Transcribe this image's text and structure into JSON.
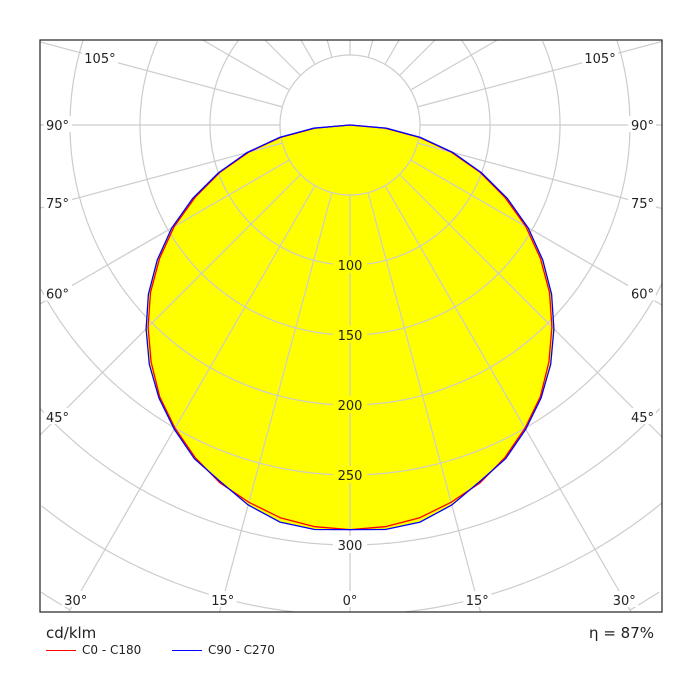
{
  "chart_data": {
    "type": "polar",
    "unit_label": "cd/klm",
    "efficiency_label": "η = 87%",
    "radial_ticks": [
      100,
      150,
      200,
      250,
      300
    ],
    "radial_rings": [
      50,
      100,
      150,
      200,
      250,
      300,
      350,
      400,
      450,
      500
    ],
    "angle_ticks": [
      {
        "angle": 0,
        "label": "0°"
      },
      {
        "angle": 15,
        "label": "15°"
      },
      {
        "angle": 30,
        "label": "30°"
      },
      {
        "angle": 45,
        "label": "45°"
      },
      {
        "angle": 60,
        "label": "60°"
      },
      {
        "angle": 75,
        "label": "75°"
      },
      {
        "angle": 90,
        "label": "90°"
      },
      {
        "angle": 105,
        "label": "105°"
      }
    ],
    "angles": [
      0,
      5,
      10,
      15,
      20,
      25,
      30,
      35,
      40,
      45,
      50,
      55,
      60,
      65,
      70,
      75,
      80,
      85,
      90
    ],
    "series": [
      {
        "name": "C0 - C180",
        "color": "#ff0000",
        "values": [
          289,
          288,
          285,
          279,
          272,
          262,
          250,
          237,
          221,
          204,
          186,
          166,
          145,
          122,
          99,
          75,
          50,
          25,
          0
        ]
      },
      {
        "name": "C90 - C270",
        "color": "#0000ff",
        "values": [
          289,
          290,
          288,
          281,
          271,
          263,
          251,
          238,
          223,
          206,
          188,
          168,
          147,
          124,
          100,
          76,
          51,
          26,
          0
        ]
      }
    ],
    "fill_color": "#ffff00",
    "grid_color": "#cccccc",
    "grid": true
  }
}
